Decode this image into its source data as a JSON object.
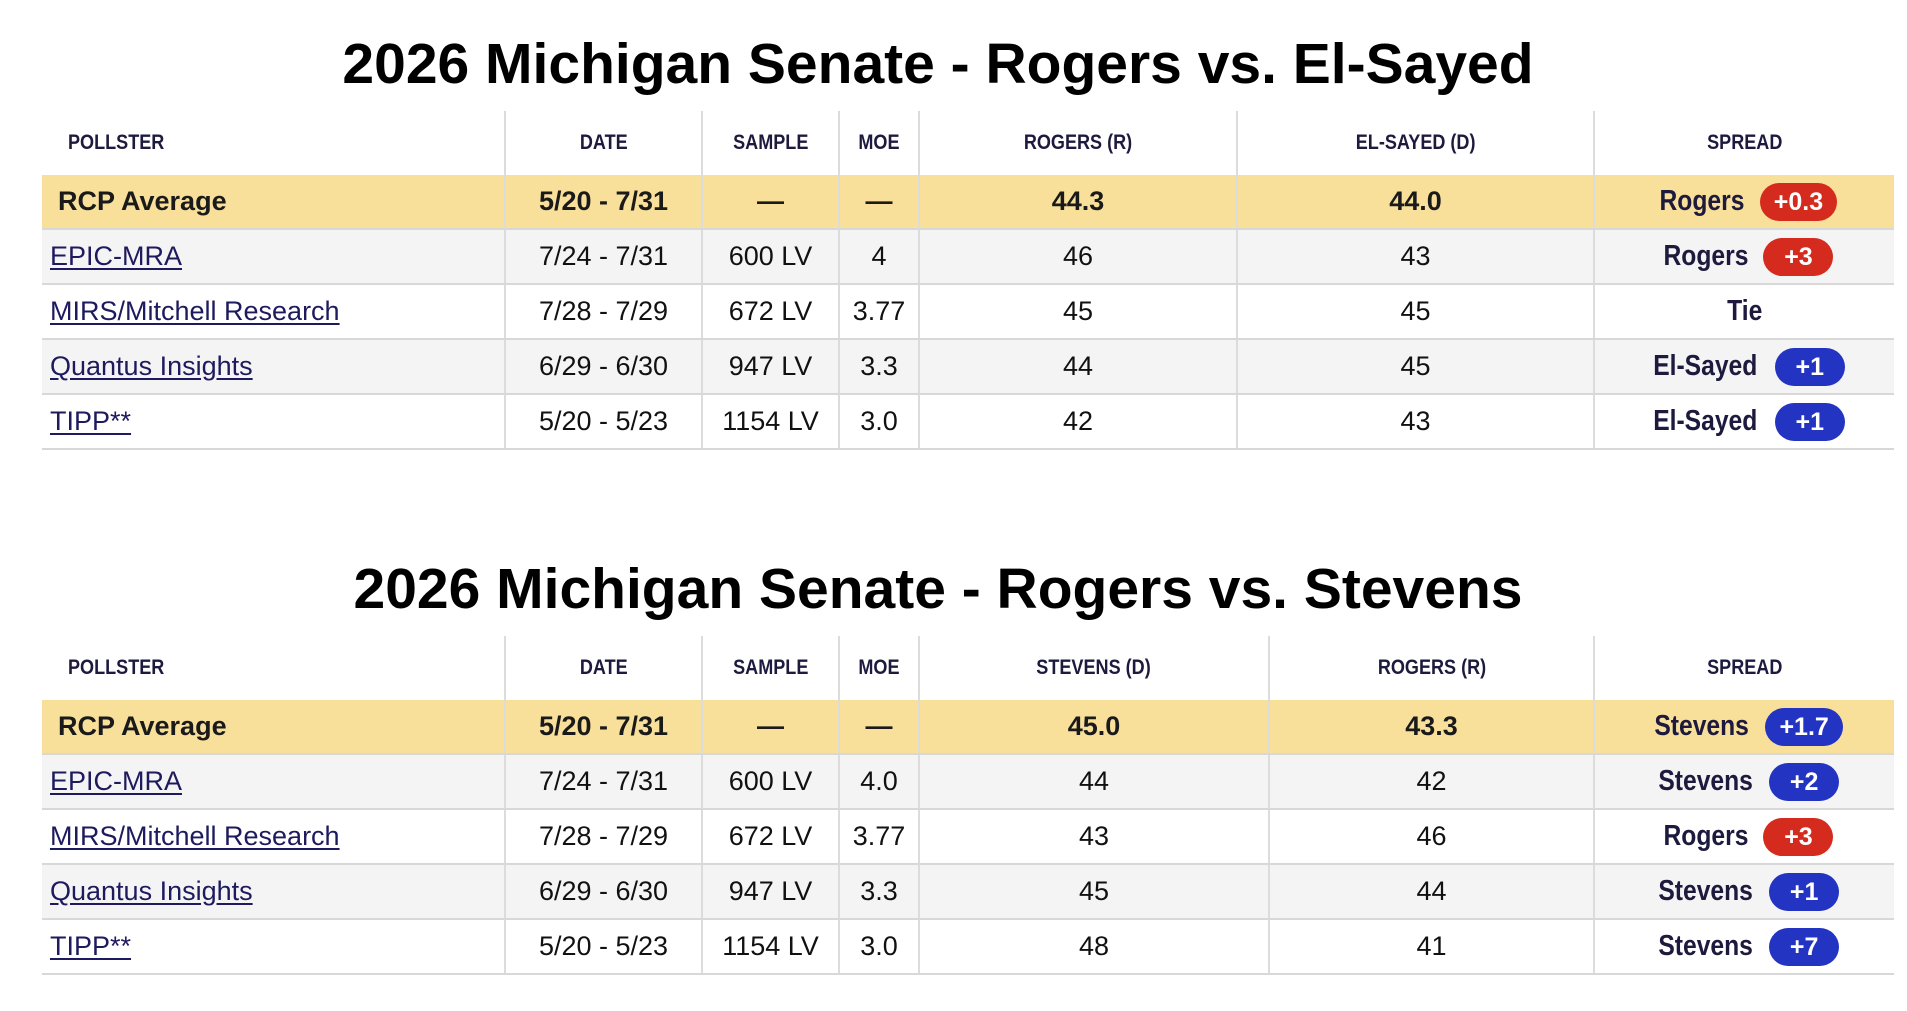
{
  "polls": [
    {
      "title": "2026 Michigan Senate - Rogers vs. El-Sayed",
      "headers": [
        "POLLSTER",
        "DATE",
        "SAMPLE",
        "MOE",
        "ROGERS (R)",
        "EL-SAYED (D)",
        "SPREAD"
      ],
      "average": {
        "pollster": "RCP Average",
        "date": "5/20 - 7/31",
        "sample": "—",
        "moe": "—",
        "c1": "44.3",
        "c2": "44.0",
        "spread_name": "Rogers",
        "spread_value": "+0.3",
        "spread_color": "#d52b1e"
      },
      "rows": [
        {
          "pollster": "EPIC-MRA",
          "date": "7/24 - 7/31",
          "sample": "600 LV",
          "moe": "4",
          "c1": "46",
          "c2": "43",
          "spread_name": "Rogers",
          "spread_value": "+3",
          "spread_color": "#d52b1e"
        },
        {
          "pollster": "MIRS/Mitchell Research",
          "date": "7/28 - 7/29",
          "sample": "672 LV",
          "moe": "3.77",
          "c1": "45",
          "c2": "45",
          "spread_name": "Tie",
          "spread_value": "",
          "spread_color": ""
        },
        {
          "pollster": "Quantus Insights",
          "date": "6/29 - 6/30",
          "sample": "947 LV",
          "moe": "3.3",
          "c1": "44",
          "c2": "45",
          "spread_name": "El-Sayed",
          "spread_value": "+1",
          "spread_color": "#2434c2"
        },
        {
          "pollster": "TIPP**",
          "date": "5/20 - 5/23",
          "sample": "1154 LV",
          "moe": "3.0",
          "c1": "42",
          "c2": "43",
          "spread_name": "El-Sayed",
          "spread_value": "+1",
          "spread_color": "#2434c2"
        }
      ]
    },
    {
      "title": "2026 Michigan Senate - Rogers vs. Stevens",
      "headers": [
        "POLLSTER",
        "DATE",
        "SAMPLE",
        "MOE",
        "STEVENS (D)",
        "ROGERS (R)",
        "SPREAD"
      ],
      "average": {
        "pollster": "RCP Average",
        "date": "5/20 - 7/31",
        "sample": "—",
        "moe": "—",
        "c1": "45.0",
        "c2": "43.3",
        "spread_name": "Stevens",
        "spread_value": "+1.7",
        "spread_color": "#2434c2"
      },
      "rows": [
        {
          "pollster": "EPIC-MRA",
          "date": "7/24 - 7/31",
          "sample": "600 LV",
          "moe": "4.0",
          "c1": "44",
          "c2": "42",
          "spread_name": "Stevens",
          "spread_value": "+2",
          "spread_color": "#2434c2"
        },
        {
          "pollster": "MIRS/Mitchell Research",
          "date": "7/28 - 7/29",
          "sample": "672 LV",
          "moe": "3.77",
          "c1": "43",
          "c2": "46",
          "spread_name": "Rogers",
          "spread_value": "+3",
          "spread_color": "#d52b1e"
        },
        {
          "pollster": "Quantus Insights",
          "date": "6/29 - 6/30",
          "sample": "947 LV",
          "moe": "3.3",
          "c1": "45",
          "c2": "44",
          "spread_name": "Stevens",
          "spread_value": "+1",
          "spread_color": "#2434c2"
        },
        {
          "pollster": "TIPP**",
          "date": "5/20 - 5/23",
          "sample": "1154 LV",
          "moe": "3.0",
          "c1": "48",
          "c2": "41",
          "spread_name": "Stevens",
          "spread_value": "+7",
          "spread_color": "#2434c2"
        }
      ]
    }
  ]
}
